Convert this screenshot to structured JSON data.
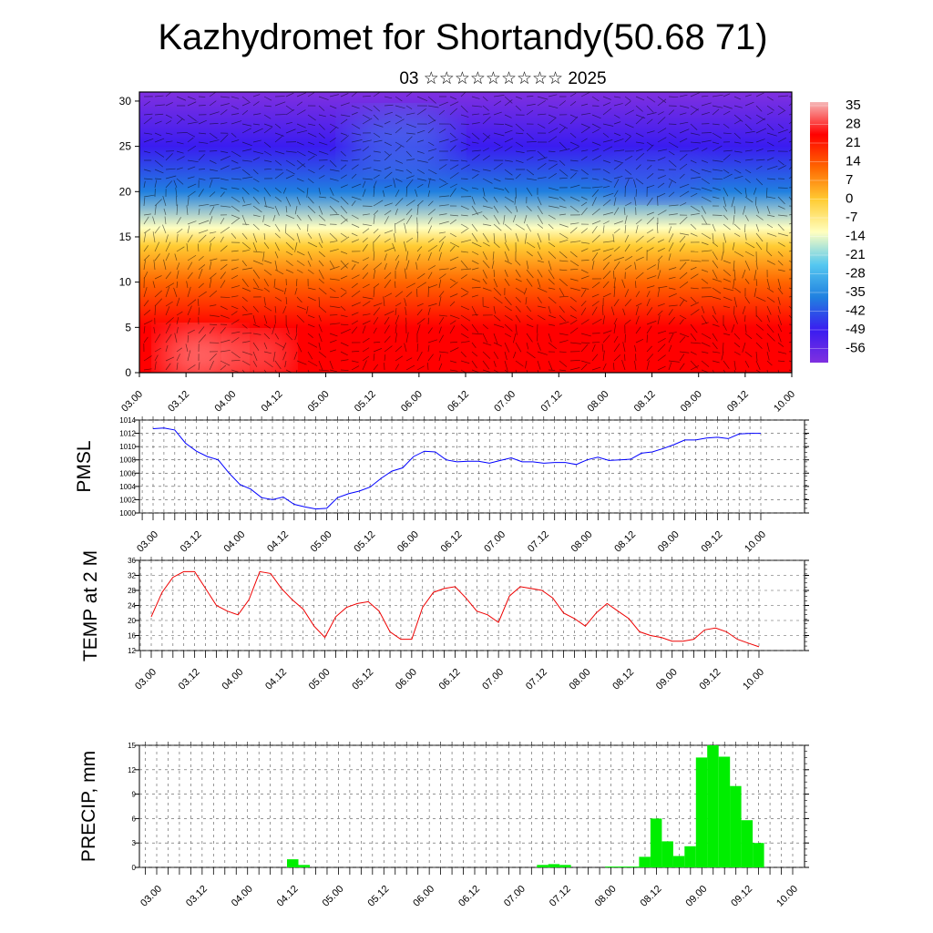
{
  "title": "Kazhydromet for Shortandy(50.68 71)",
  "subtitle": "03 ☆☆☆☆☆☆☆☆☆ 2025",
  "time_ticks": [
    "03.00",
    "03.12",
    "04.00",
    "04.12",
    "05.00",
    "05.12",
    "06.00",
    "06.12",
    "07.00",
    "07.12",
    "08.00",
    "08.12",
    "09.00",
    "09.12",
    "10.00"
  ],
  "chart_data": [
    {
      "type": "heatmap",
      "panel": "vertical-section",
      "title": "",
      "xlabel": "",
      "ylabel": "",
      "ylim": [
        0,
        31
      ],
      "y_ticks": [
        "0",
        "5",
        "10",
        "15",
        "20",
        "25",
        "30"
      ],
      "colorbar_labels": [
        "35",
        "28",
        "21",
        "14",
        "7",
        "0",
        "-7",
        "-14",
        "-21",
        "-28",
        "-35",
        "-42",
        "-49",
        "-56"
      ],
      "colorscale": [
        "#f6b7b7",
        "#ff0000",
        "#ff6600",
        "#ffcc33",
        "#ffffc0",
        "#55c8f0",
        "#2080e0",
        "#3a1cf0",
        "#8030e0"
      ],
      "levels_y": [
        0,
        5,
        10,
        14,
        16,
        20,
        25,
        31
      ],
      "levels_value": [
        28,
        21,
        10,
        0,
        -7,
        -30,
        -48,
        -56
      ],
      "overlay": "wind vectors"
    },
    {
      "type": "line",
      "panel": "pmsl",
      "ylabel": "PMSL",
      "ylim": [
        1000,
        1014
      ],
      "y_ticks": [
        "1000",
        "1002",
        "1004",
        "1006",
        "1008",
        "1010",
        "1012",
        "1014"
      ],
      "color": "#0000ff",
      "values": [
        1012.7,
        1012.8,
        1012.5,
        1010.5,
        1009.3,
        1008.5,
        1008.0,
        1006.0,
        1004.3,
        1003.6,
        1002.3,
        1002.0,
        1002.4,
        1001.3,
        1000.9,
        1000.6,
        1000.7,
        1002.3,
        1002.9,
        1003.3,
        1003.9,
        1005.2,
        1006.3,
        1006.8,
        1008.5,
        1009.3,
        1009.2,
        1008.0,
        1007.7,
        1007.8,
        1007.8,
        1007.5,
        1007.9,
        1008.3,
        1007.7,
        1007.7,
        1007.5,
        1007.6,
        1007.6,
        1007.3,
        1008.0,
        1008.4,
        1007.9,
        1008.0,
        1008.1,
        1009.0,
        1009.2,
        1009.7,
        1010.3,
        1011.0,
        1011.0,
        1011.3,
        1011.4,
        1011.2,
        1011.9,
        1012.0,
        1012.0
      ]
    },
    {
      "type": "line",
      "panel": "temp",
      "ylabel": "TEMP at 2 M",
      "ylim": [
        12,
        36
      ],
      "y_ticks": [
        "12",
        "16",
        "20",
        "24",
        "28",
        "32",
        "36"
      ],
      "color": "#ee0000",
      "values": [
        21,
        27.5,
        31.5,
        33,
        33,
        28.5,
        24,
        22.5,
        21.5,
        25.5,
        33,
        32.5,
        28.5,
        25.5,
        23,
        18.5,
        15.5,
        21,
        23.5,
        24.5,
        25,
        22.5,
        17,
        15,
        15,
        23.5,
        27.5,
        28.5,
        29,
        26,
        22.5,
        21.5,
        19.5,
        26.5,
        29,
        28.5,
        28,
        26,
        22,
        20.5,
        18.5,
        22,
        24.5,
        22.5,
        20.5,
        17,
        16,
        15.5,
        14.5,
        14.5,
        15,
        17.5,
        18,
        17,
        15,
        14,
        13
      ]
    },
    {
      "type": "bar",
      "panel": "precip",
      "ylabel": "PRECIP, mm",
      "ylim": [
        0,
        15
      ],
      "y_ticks": [
        "0",
        "3",
        "6",
        "9",
        "12",
        "15"
      ],
      "color": "#00ee00",
      "values": [
        0,
        0,
        0,
        0,
        0,
        0,
        0,
        0,
        0,
        0,
        0,
        0,
        0,
        1.0,
        0.3,
        0,
        0,
        0,
        0,
        0,
        0,
        0,
        0,
        0,
        0,
        0,
        0,
        0,
        0,
        0,
        0,
        0,
        0,
        0,
        0,
        0.3,
        0.4,
        0.3,
        0,
        0,
        0,
        0.1,
        0.1,
        0.1,
        1.3,
        6.0,
        3.2,
        1.4,
        2.6,
        13.5,
        15.0,
        13.6,
        10.0,
        5.8,
        3.0,
        0,
        0
      ]
    }
  ]
}
